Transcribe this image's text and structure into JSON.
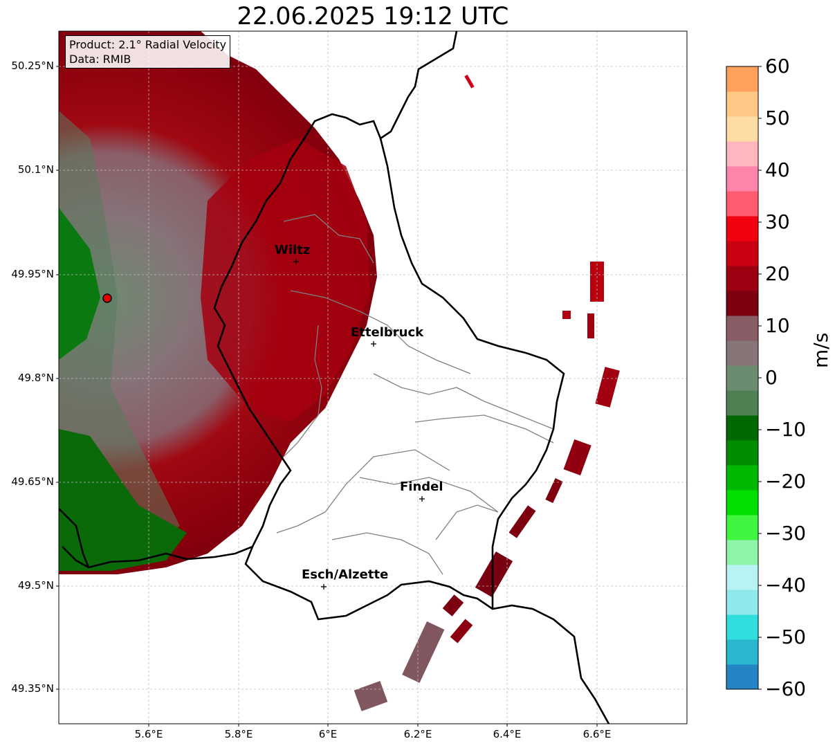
{
  "title": "22.06.2025 19:12 UTC",
  "info_box": {
    "product": "Product: 2.1° Radial Velocity",
    "data": "Data: RMIB"
  },
  "lat_labels": [
    "50.25°N",
    "50.1°N",
    "49.95°N",
    "49.8°N",
    "49.65°N",
    "49.5°N",
    "49.35°N"
  ],
  "lon_labels": [
    "5.6°E",
    "5.8°E",
    "6°E",
    "6.2°E",
    "6.4°E",
    "6.6°E"
  ],
  "cities": [
    {
      "name": "Wiltz",
      "lon": 5.93,
      "lat": 49.968
    },
    {
      "name": "Ettelbruck",
      "lon": 6.1,
      "lat": 49.848
    },
    {
      "name": "Findel",
      "lon": 6.21,
      "lat": 49.627
    },
    {
      "name": "Esch/Alzette",
      "lon": 5.99,
      "lat": 49.498
    }
  ],
  "radar_site": {
    "lon": 5.505,
    "lat": 49.915
  },
  "colorbar": {
    "unit": "m/s",
    "ticks": [
      "60",
      "50",
      "40",
      "30",
      "20",
      "10",
      "0",
      "−10",
      "−20",
      "−30",
      "−40",
      "−50",
      "−60"
    ],
    "min": -60,
    "max": 60,
    "colors": [
      "#2584c4",
      "#29b7d0",
      "#30dede",
      "#8fe9ea",
      "#b9f2f2",
      "#8ef4a8",
      "#40f540",
      "#00e000",
      "#00b800",
      "#008e00",
      "#006800",
      "#4e8054",
      "#6b8c6e",
      "#877678",
      "#8a5c66",
      "#7c0010",
      "#9c0010",
      "#c80010",
      "#f20010",
      "#ff5c70",
      "#ff84aa",
      "#ffb6be",
      "#ffdca4",
      "#ffc884",
      "#ffa05c"
    ]
  }
}
